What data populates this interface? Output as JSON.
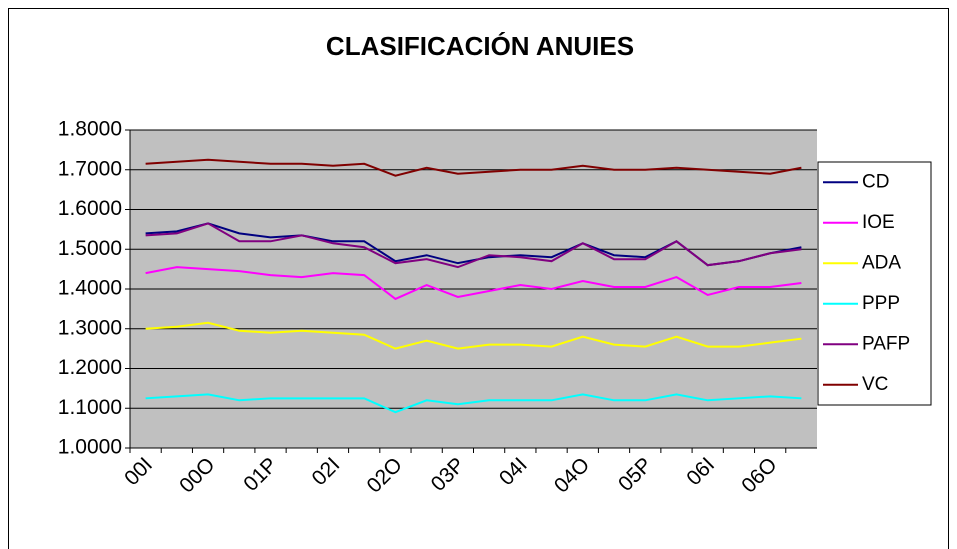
{
  "chart_data": {
    "type": "line",
    "title": "CLASIFICACIÓN ANUIES",
    "categories": [
      "00I",
      null,
      "00O",
      null,
      "01P",
      null,
      "02I",
      null,
      "02O",
      null,
      "03P",
      null,
      "04I",
      null,
      "04O",
      null,
      "05P",
      null,
      "06I",
      null,
      "06O",
      null
    ],
    "series": [
      {
        "name": "CD",
        "color": "#000080",
        "values": [
          1.54,
          1.545,
          1.565,
          1.54,
          1.53,
          1.535,
          1.52,
          1.52,
          1.47,
          1.485,
          1.465,
          1.48,
          1.485,
          1.48,
          1.515,
          1.485,
          1.48,
          1.52,
          1.46,
          1.47,
          1.49,
          1.505
        ]
      },
      {
        "name": "IOE",
        "color": "#ff00ff",
        "values": [
          1.44,
          1.455,
          1.45,
          1.445,
          1.435,
          1.43,
          1.44,
          1.435,
          1.375,
          1.41,
          1.38,
          1.395,
          1.41,
          1.4,
          1.42,
          1.405,
          1.405,
          1.43,
          1.385,
          1.405,
          1.405,
          1.415
        ]
      },
      {
        "name": "ADA",
        "color": "#ffff00",
        "values": [
          1.3,
          1.305,
          1.315,
          1.295,
          1.29,
          1.295,
          1.29,
          1.285,
          1.25,
          1.27,
          1.25,
          1.26,
          1.26,
          1.255,
          1.28,
          1.26,
          1.255,
          1.28,
          1.255,
          1.255,
          1.265,
          1.275
        ]
      },
      {
        "name": "PPP",
        "color": "#00ffff",
        "values": [
          1.125,
          1.13,
          1.135,
          1.12,
          1.125,
          1.125,
          1.125,
          1.125,
          1.09,
          1.12,
          1.11,
          1.12,
          1.12,
          1.12,
          1.135,
          1.12,
          1.12,
          1.135,
          1.12,
          1.125,
          1.13,
          1.125
        ]
      },
      {
        "name": "PAFP",
        "color": "#800080",
        "values": [
          1.535,
          1.54,
          1.565,
          1.52,
          1.52,
          1.535,
          1.515,
          1.505,
          1.465,
          1.475,
          1.455,
          1.485,
          1.48,
          1.47,
          1.515,
          1.475,
          1.475,
          1.52,
          1.46,
          1.47,
          1.49,
          1.5
        ]
      },
      {
        "name": "VC",
        "color": "#800000",
        "values": [
          1.715,
          1.72,
          1.725,
          1.72,
          1.715,
          1.715,
          1.71,
          1.715,
          1.685,
          1.705,
          1.69,
          1.695,
          1.7,
          1.7,
          1.71,
          1.7,
          1.7,
          1.705,
          1.7,
          1.695,
          1.69,
          1.705
        ]
      }
    ],
    "ylim": [
      1.0,
      1.8
    ],
    "yticks": [
      {
        "value": 1.0,
        "label": "1.0000"
      },
      {
        "value": 1.1,
        "label": "1.1000"
      },
      {
        "value": 1.2,
        "label": "1.2000"
      },
      {
        "value": 1.3,
        "label": "1.3000"
      },
      {
        "value": 1.4,
        "label": "1.4000"
      },
      {
        "value": 1.5,
        "label": "1.5000"
      },
      {
        "value": 1.6,
        "label": "1.6000"
      },
      {
        "value": 1.7,
        "label": "1.7000"
      },
      {
        "value": 1.8,
        "label": "1.8000"
      }
    ],
    "grid": true,
    "legend": "right",
    "plot_background": "#c0c0c0"
  }
}
